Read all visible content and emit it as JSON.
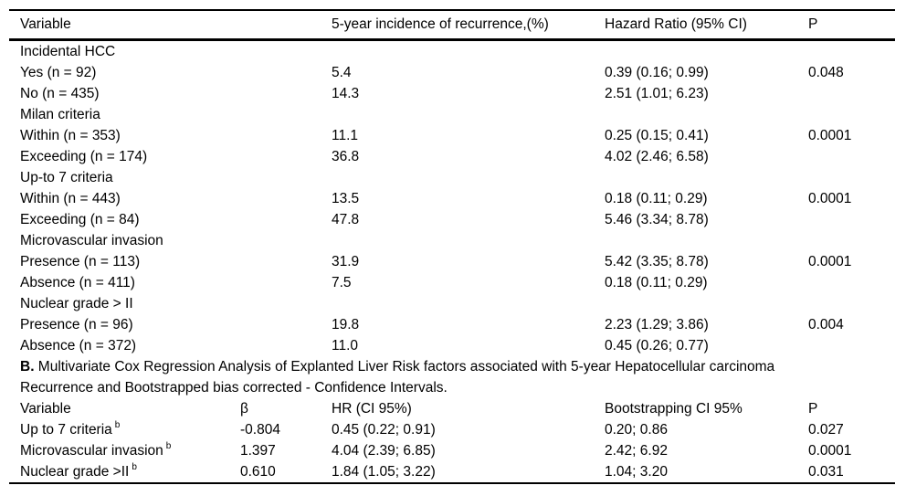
{
  "page": {
    "background": "#ffffff",
    "text_color": "#000000",
    "rule_color": "#000000"
  },
  "table_a": {
    "columns": [
      "Variable",
      "5-year incidence of recurrence,(%)",
      "Hazard Ratio (95% CI)",
      "P"
    ],
    "rows": [
      {
        "variable": "Incidental HCC",
        "incidence": "",
        "hr": "",
        "p": ""
      },
      {
        "variable": "Yes (n = 92)",
        "incidence": "5.4",
        "hr": "0.39 (0.16; 0.99)",
        "p": "0.048"
      },
      {
        "variable": "No (n = 435)",
        "incidence": "14.3",
        "hr": "2.51 (1.01; 6.23)",
        "p": ""
      },
      {
        "variable": "Milan criteria",
        "incidence": "",
        "hr": "",
        "p": ""
      },
      {
        "variable": "Within (n = 353)",
        "incidence": "11.1",
        "hr": "0.25 (0.15; 0.41)",
        "p": "0.0001"
      },
      {
        "variable": "Exceeding (n = 174)",
        "incidence": "36.8",
        "hr": "4.02 (2.46; 6.58)",
        "p": ""
      },
      {
        "variable": "Up-to 7 criteria",
        "incidence": "",
        "hr": "",
        "p": ""
      },
      {
        "variable": "Within (n = 443)",
        "incidence": "13.5",
        "hr": "0.18 (0.11; 0.29)",
        "p": "0.0001"
      },
      {
        "variable": "Exceeding (n = 84)",
        "incidence": "47.8",
        "hr": "5.46 (3.34; 8.78)",
        "p": ""
      },
      {
        "variable": "Microvascular invasion",
        "incidence": "",
        "hr": "",
        "p": ""
      },
      {
        "variable": "Presence (n = 113)",
        "incidence": "31.9",
        "hr": "5.42 (3.35; 8.78)",
        "p": "0.0001"
      },
      {
        "variable": "Absence (n = 411)",
        "incidence": "7.5",
        "hr": "0.18 (0.11; 0.29)",
        "p": ""
      },
      {
        "variable": "Nuclear grade > II",
        "incidence": "",
        "hr": "",
        "p": ""
      },
      {
        "variable": "Presence (n = 96)",
        "incidence": "19.8",
        "hr": "2.23 (1.29; 3.86)",
        "p": "0.004"
      },
      {
        "variable": "Absence (n = 372)",
        "incidence": "11.0",
        "hr": "0.45 (0.26; 0.77)",
        "p": ""
      }
    ]
  },
  "caption_b": {
    "prefix": "B.",
    "text": " Multivariate Cox Regression Analysis of Explanted Liver Risk factors associated with 5-year Hepatocellular carcinoma Recurrence and Bootstrapped bias corrected - Confidence Intervals."
  },
  "table_b": {
    "columns": [
      "Variable",
      "β",
      "HR (CI 95%)",
      "Bootstrapping CI 95%",
      "P"
    ],
    "rows": [
      {
        "variable": "Up to 7 criteria",
        "sup": "b",
        "beta": "-0.804",
        "hr": "0.45 (0.22; 0.91)",
        "ci": "0.20; 0.86",
        "p": "0.027"
      },
      {
        "variable": "Microvascular invasion",
        "sup": "b",
        "beta": "1.397",
        "hr": "4.04 (2.39; 6.85)",
        "ci": "2.42; 6.92",
        "p": "0.0001"
      },
      {
        "variable": "Nuclear grade >II",
        "sup": "b",
        "beta": "0.610",
        "hr": "1.84 (1.05; 3.22)",
        "ci": "1.04; 3.20",
        "p": "0.031"
      }
    ]
  }
}
